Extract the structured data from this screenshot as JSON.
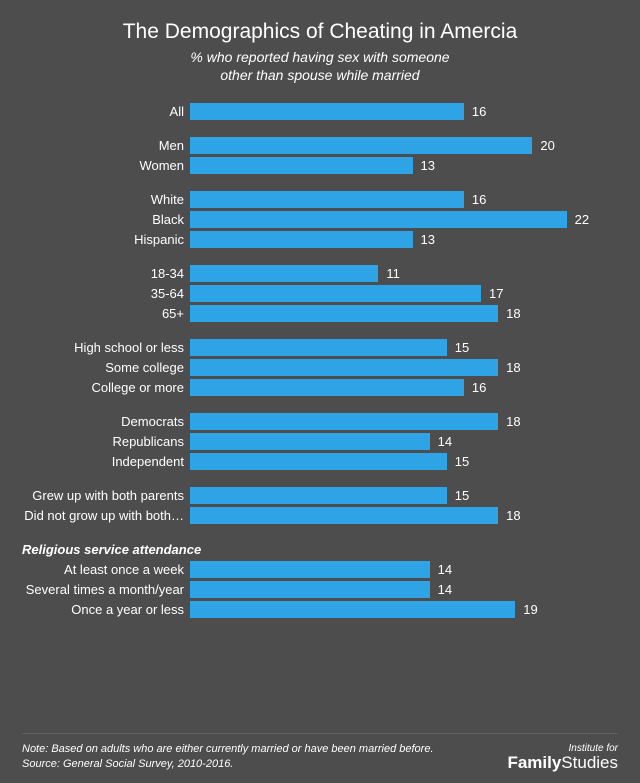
{
  "title": "The Demographics of Cheating in Amercia",
  "subtitle_line1": "% who reported having sex with someone",
  "subtitle_line2": "other than spouse while married",
  "bar_color": "#2ea3e6",
  "max_value": 25,
  "groups": [
    {
      "rows": [
        {
          "label": "All",
          "value": 16
        }
      ]
    },
    {
      "rows": [
        {
          "label": "Men",
          "value": 20
        },
        {
          "label": "Women",
          "value": 13
        }
      ]
    },
    {
      "rows": [
        {
          "label": "White",
          "value": 16
        },
        {
          "label": "Black",
          "value": 22
        },
        {
          "label": "Hispanic",
          "value": 13
        }
      ]
    },
    {
      "rows": [
        {
          "label": "18-34",
          "value": 11
        },
        {
          "label": "35-64",
          "value": 17
        },
        {
          "label": "65+",
          "value": 18
        }
      ]
    },
    {
      "rows": [
        {
          "label": "High school or less",
          "value": 15
        },
        {
          "label": "Some college",
          "value": 18
        },
        {
          "label": "College or more",
          "value": 16
        }
      ]
    },
    {
      "rows": [
        {
          "label": "Democrats",
          "value": 18
        },
        {
          "label": "Republicans",
          "value": 14
        },
        {
          "label": "Independent",
          "value": 15
        }
      ]
    },
    {
      "rows": [
        {
          "label": "Grew up with both parents",
          "value": 15
        },
        {
          "label": "Did not grow up with both…",
          "value": 18
        }
      ]
    },
    {
      "header": "Religious service attendance",
      "rows": [
        {
          "label": "At least once a week",
          "value": 14
        },
        {
          "label": "Several times a month/year",
          "value": 14
        },
        {
          "label": "Once a year or less",
          "value": 19
        }
      ]
    }
  ],
  "note_line1": "Note: Based on adults who are either currently married or have been married before.",
  "note_line2": "Source: General Social Survey, 2010-2016.",
  "logo_top": "Institute for",
  "logo_bold": "Family",
  "logo_rest": "Studies"
}
